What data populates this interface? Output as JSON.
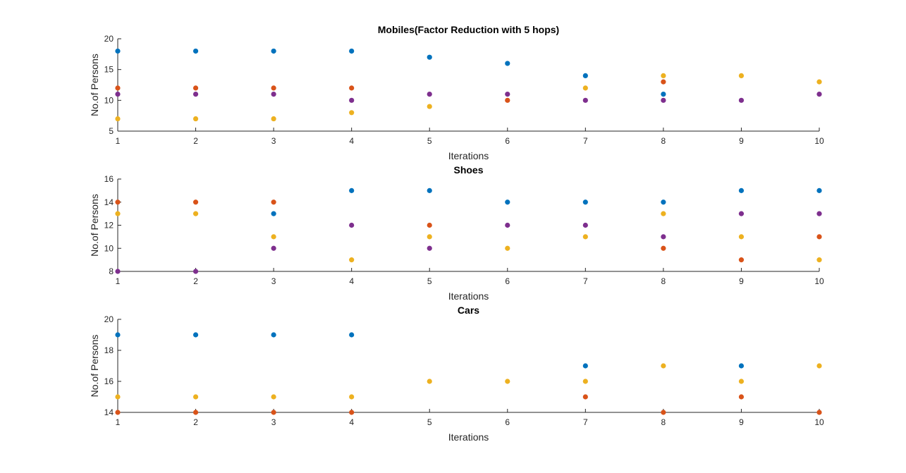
{
  "chart_data": [
    {
      "type": "scatter",
      "title": "Mobiles(Factor Reduction with 5 hops)",
      "xlabel": "Iterations",
      "ylabel": "No.of Persons",
      "xlim": [
        1,
        10
      ],
      "ylim": [
        5,
        20
      ],
      "xticks": [
        1,
        2,
        3,
        4,
        5,
        6,
        7,
        8,
        9,
        10
      ],
      "yticks": [
        5,
        10,
        15,
        20
      ],
      "grid": false,
      "series": [
        {
          "color": "#0072BD",
          "x": [
            1,
            2,
            3,
            4,
            5,
            6,
            7,
            8
          ],
          "y": [
            18,
            18,
            18,
            18,
            17,
            16,
            14,
            11
          ]
        },
        {
          "color": "#D95319",
          "x": [
            1,
            2,
            3,
            4,
            6,
            8
          ],
          "y": [
            12,
            12,
            12,
            12,
            10,
            13
          ]
        },
        {
          "color": "#EDB120",
          "x": [
            1,
            2,
            3,
            4,
            5,
            7,
            8,
            9,
            10
          ],
          "y": [
            7,
            7,
            7,
            8,
            9,
            12,
            14,
            14,
            13
          ]
        },
        {
          "color": "#7E2F8E",
          "x": [
            1,
            2,
            3,
            4,
            5,
            6,
            7,
            8,
            9,
            10
          ],
          "y": [
            11,
            11,
            11,
            10,
            11,
            11,
            10,
            10,
            10,
            11
          ]
        }
      ]
    },
    {
      "type": "scatter",
      "title": "Shoes",
      "xlabel": "Iterations",
      "ylabel": "No.of Persons",
      "xlim": [
        1,
        10
      ],
      "ylim": [
        8,
        16
      ],
      "xticks": [
        1,
        2,
        3,
        4,
        5,
        6,
        7,
        8,
        9,
        10
      ],
      "yticks": [
        8,
        10,
        12,
        14,
        16
      ],
      "grid": false,
      "series": [
        {
          "color": "#0072BD",
          "x": [
            3,
            4,
            5,
            6,
            7,
            8,
            9,
            10
          ],
          "y": [
            13,
            15,
            15,
            14,
            14,
            14,
            15,
            15
          ]
        },
        {
          "color": "#D95319",
          "x": [
            1,
            2,
            3,
            5,
            8,
            9,
            10
          ],
          "y": [
            14,
            14,
            14,
            12,
            10,
            9,
            11
          ]
        },
        {
          "color": "#EDB120",
          "x": [
            1,
            2,
            3,
            4,
            5,
            6,
            7,
            8,
            9,
            10
          ],
          "y": [
            13,
            13,
            11,
            9,
            11,
            10,
            11,
            13,
            11,
            9
          ]
        },
        {
          "color": "#7E2F8E",
          "x": [
            1,
            2,
            3,
            4,
            5,
            6,
            7,
            8,
            9,
            10
          ],
          "y": [
            8,
            8,
            10,
            12,
            10,
            12,
            12,
            11,
            13,
            13
          ]
        }
      ]
    },
    {
      "type": "scatter",
      "title": "Cars",
      "xlabel": "Iterations",
      "ylabel": "No.of Persons",
      "xlim": [
        1,
        10
      ],
      "ylim": [
        14,
        20
      ],
      "xticks": [
        1,
        2,
        3,
        4,
        5,
        6,
        7,
        8,
        9,
        10
      ],
      "yticks": [
        14,
        16,
        18,
        20
      ],
      "grid": false,
      "series": [
        {
          "color": "#0072BD",
          "x": [
            1,
            2,
            3,
            4,
            7,
            9
          ],
          "y": [
            19,
            19,
            19,
            19,
            17,
            17
          ]
        },
        {
          "color": "#EDB120",
          "x": [
            1,
            2,
            3,
            4,
            5,
            6,
            7,
            8,
            9,
            10
          ],
          "y": [
            15,
            15,
            15,
            15,
            16,
            16,
            16,
            17,
            16,
            17
          ]
        },
        {
          "color": "#D95319",
          "x": [
            1,
            2,
            3,
            4,
            7,
            8,
            9,
            10
          ],
          "y": [
            14,
            14,
            14,
            14,
            15,
            14,
            15,
            14
          ]
        }
      ]
    }
  ]
}
